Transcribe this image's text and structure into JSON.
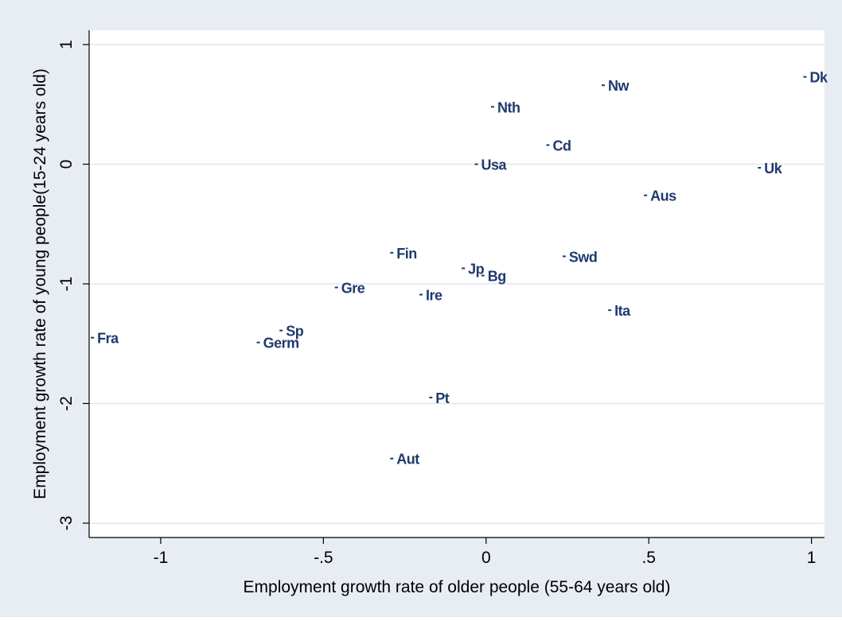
{
  "chart_data": {
    "type": "scatter",
    "title": "",
    "xlabel": "Employment growth rate of older people (55-64 years old)",
    "ylabel": "Employment growth rate of young people(15-24 years old)",
    "xlim": [
      -1.22,
      1.04
    ],
    "ylim": [
      -3.12,
      1.12
    ],
    "xticks": [
      {
        "value": -1,
        "label": "-1"
      },
      {
        "value": -0.5,
        "label": "-.5"
      },
      {
        "value": 0,
        "label": "0"
      },
      {
        "value": 0.5,
        "label": ".5"
      },
      {
        "value": 1,
        "label": "1"
      }
    ],
    "yticks": [
      {
        "value": 1,
        "label": "1"
      },
      {
        "value": 0,
        "label": "0"
      },
      {
        "value": -1,
        "label": "-1"
      },
      {
        "value": -2,
        "label": "-2"
      },
      {
        "value": -3,
        "label": "-3"
      }
    ],
    "grid": true,
    "legend": "none",
    "colors": {
      "outer_background": "#e8ecf3",
      "plot_background": "#ffffff",
      "gridline": "#e2e6ef",
      "marker": "#1f3a6e",
      "label": "#1f3a6e",
      "axis": "#000000"
    },
    "points": [
      {
        "label": "Dk",
        "x": 0.98,
        "y": 0.73
      },
      {
        "label": "Nw",
        "x": 0.36,
        "y": 0.66
      },
      {
        "label": "Nth",
        "x": 0.02,
        "y": 0.48
      },
      {
        "label": "Cd",
        "x": 0.19,
        "y": 0.16
      },
      {
        "label": "Usa",
        "x": -0.03,
        "y": 0.0
      },
      {
        "label": "Uk",
        "x": 0.84,
        "y": -0.03
      },
      {
        "label": "Aus",
        "x": 0.49,
        "y": -0.26
      },
      {
        "label": "Fin",
        "x": -0.29,
        "y": -0.74
      },
      {
        "label": "Swd",
        "x": 0.24,
        "y": -0.77
      },
      {
        "label": "Jp",
        "x": -0.07,
        "y": -0.87
      },
      {
        "label": "Bg",
        "x": -0.01,
        "y": -0.93
      },
      {
        "label": "Gre",
        "x": -0.46,
        "y": -1.03
      },
      {
        "label": "Ire",
        "x": -0.2,
        "y": -1.09
      },
      {
        "label": "Ita",
        "x": 0.38,
        "y": -1.22
      },
      {
        "label": "Fra",
        "x": -1.21,
        "y": -1.45
      },
      {
        "label": "Sp",
        "x": -0.63,
        "y": -1.39
      },
      {
        "label": "Germ",
        "x": -0.7,
        "y": -1.49
      },
      {
        "label": "Pt",
        "x": -0.17,
        "y": -1.95
      },
      {
        "label": "Aut",
        "x": -0.29,
        "y": -2.46
      }
    ]
  }
}
